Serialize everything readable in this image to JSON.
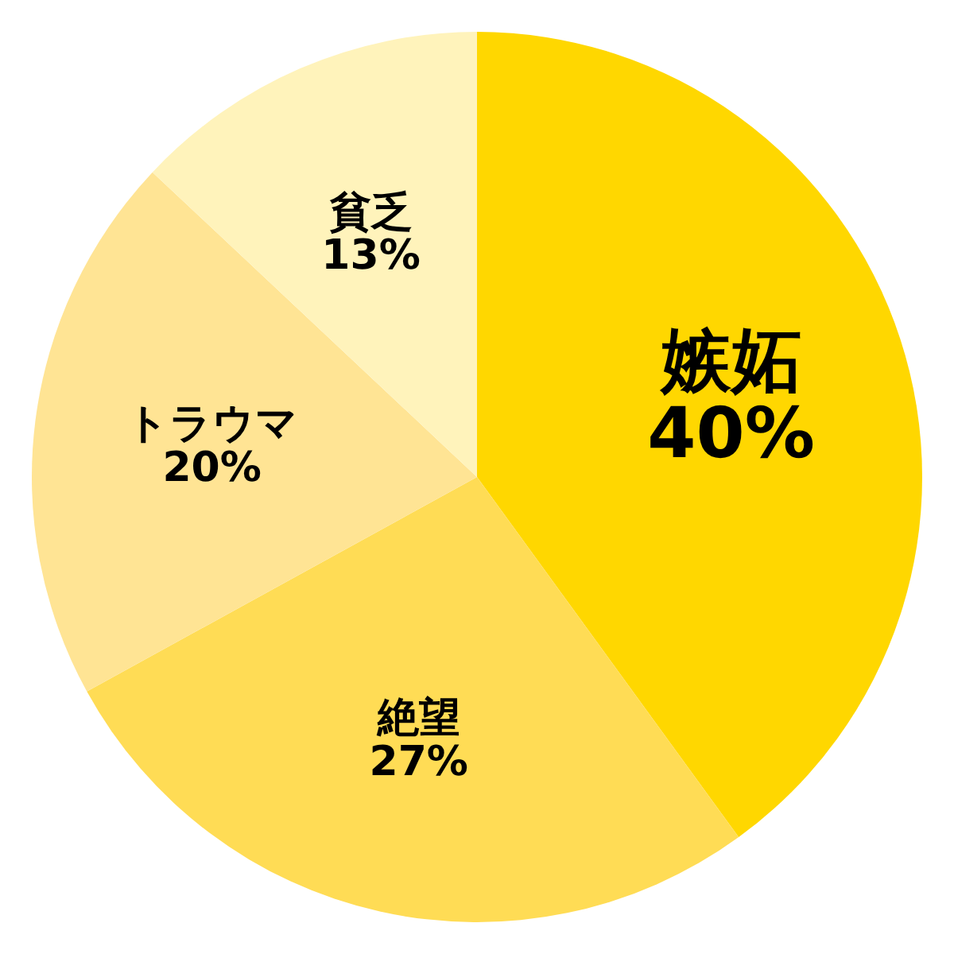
{
  "chart_data": {
    "type": "pie",
    "categories": [
      "嫉妬",
      "絶望",
      "トラウマ",
      "貧乏"
    ],
    "values": [
      40,
      27,
      20,
      13
    ],
    "colors": [
      "#ffd700",
      "#ffdc55",
      "#ffe494",
      "#fff3bb"
    ],
    "value_labels": [
      "40%",
      "27%",
      "20%",
      "13%"
    ]
  }
}
